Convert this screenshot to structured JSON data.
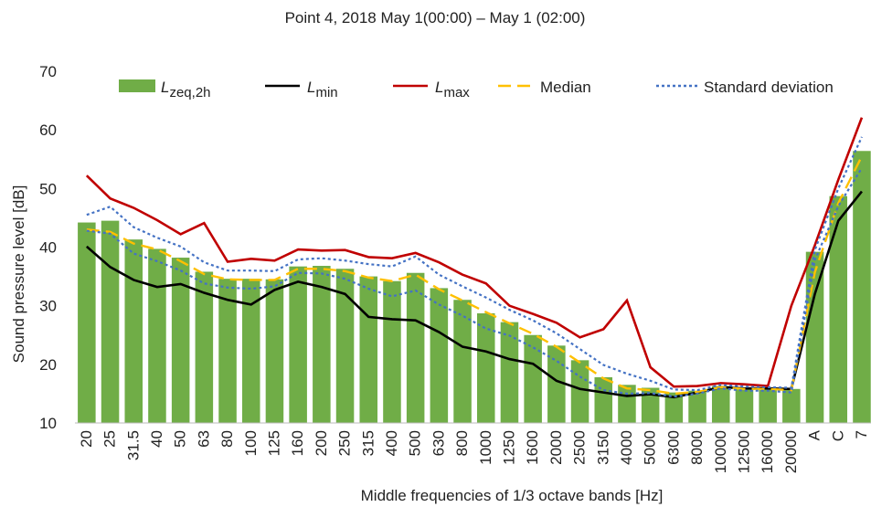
{
  "chart_data": {
    "type": "bar_line",
    "title": "Point  4, 2018 May 1(00:00) – May 1 (02:00)",
    "x_label": "Middle frequencies of 1/3 octave bands [Hz]",
    "y_label": "Sound pressure level  [dB]",
    "categories": [
      "20",
      "25",
      "31.5",
      "40",
      "50",
      "63",
      "80",
      "100",
      "125",
      "160",
      "200",
      "250",
      "315",
      "400",
      "500",
      "630",
      "800",
      "1000",
      "1250",
      "1600",
      "2000",
      "2500",
      "3150",
      "4000",
      "5000",
      "6300",
      "8000",
      "10000",
      "12500",
      "16000",
      "20000",
      "A",
      "C",
      "7"
    ],
    "ylim": [
      10,
      70
    ],
    "yticks": [
      10,
      20,
      30,
      40,
      50,
      60,
      70
    ],
    "grid": false,
    "series": [
      {
        "name": "L",
        "name_sub": "zeq,2h",
        "type": "bar",
        "color": "#70ad47",
        "values": [
          44.2,
          44.5,
          41.3,
          39.7,
          38.2,
          35.8,
          34.6,
          34.6,
          34.5,
          36.7,
          36.8,
          36.3,
          35.0,
          34.2,
          35.6,
          33.0,
          31.0,
          28.7,
          27.2,
          25.0,
          23.2,
          20.7,
          17.8,
          16.5,
          16.0,
          15.2,
          15.5,
          16.3,
          15.8,
          15.8,
          15.8,
          39.2,
          48.7,
          56.4
        ]
      },
      {
        "name": "L",
        "name_sub": "min",
        "type": "line",
        "color": "#000000",
        "dash": "solid",
        "values": [
          40.1,
          36.6,
          34.4,
          33.2,
          33.7,
          32.2,
          31.0,
          30.2,
          32.7,
          34.1,
          33.2,
          32.0,
          28.1,
          27.7,
          27.5,
          25.5,
          23.0,
          22.2,
          20.9,
          20.1,
          17.2,
          15.8,
          15.2,
          14.6,
          14.9,
          14.4,
          15.2,
          16.1,
          15.9,
          15.9,
          15.8,
          32.0,
          44.5,
          49.5
        ]
      },
      {
        "name": "L",
        "name_sub": "max",
        "type": "line",
        "color": "#c00000",
        "dash": "solid",
        "values": [
          52.2,
          48.3,
          46.7,
          44.6,
          42.2,
          44.1,
          37.5,
          38.0,
          37.7,
          39.6,
          39.4,
          39.5,
          38.3,
          38.1,
          39.0,
          37.4,
          35.3,
          33.8,
          30.0,
          28.6,
          27.1,
          24.6,
          26.0,
          30.9,
          19.5,
          16.2,
          16.3,
          16.8,
          16.6,
          16.3,
          30.0,
          40.3,
          51.5,
          62.1
        ]
      },
      {
        "name": "Median",
        "type": "line",
        "color": "#ffc000",
        "dash": "dashed",
        "values": [
          43.0,
          42.6,
          40.6,
          39.6,
          37.6,
          35.4,
          34.5,
          34.4,
          34.4,
          36.3,
          36.3,
          35.9,
          34.8,
          34.2,
          35.3,
          32.8,
          30.9,
          28.9,
          27.0,
          25.2,
          23.0,
          20.3,
          17.6,
          15.9,
          15.6,
          15.0,
          15.3,
          16.1,
          15.8,
          15.8,
          15.6,
          35.7,
          47.5,
          55.5
        ]
      },
      {
        "name": "Standard deviation",
        "type": "band_lines",
        "color": "#4472c4",
        "dash": "dotted",
        "upper": [
          45.5,
          46.9,
          43.4,
          41.6,
          40.1,
          37.4,
          36.0,
          36.0,
          35.9,
          37.9,
          38.1,
          37.7,
          37.1,
          36.7,
          38.4,
          35.3,
          33.3,
          31.4,
          29.3,
          27.5,
          25.3,
          22.6,
          19.9,
          18.4,
          17.2,
          15.7,
          15.6,
          16.5,
          16.2,
          16.1,
          16.0,
          39.5,
          50.0,
          58.8
        ],
        "lower": [
          42.8,
          42.3,
          38.9,
          37.6,
          36.0,
          33.8,
          33.1,
          32.9,
          33.3,
          35.6,
          35.5,
          34.6,
          32.9,
          31.6,
          32.6,
          30.2,
          28.3,
          26.1,
          24.9,
          22.9,
          20.6,
          17.9,
          15.6,
          15.0,
          15.1,
          14.5,
          15.0,
          15.9,
          15.5,
          15.5,
          15.2,
          37.8,
          47.0,
          53.5
        ]
      }
    ]
  }
}
